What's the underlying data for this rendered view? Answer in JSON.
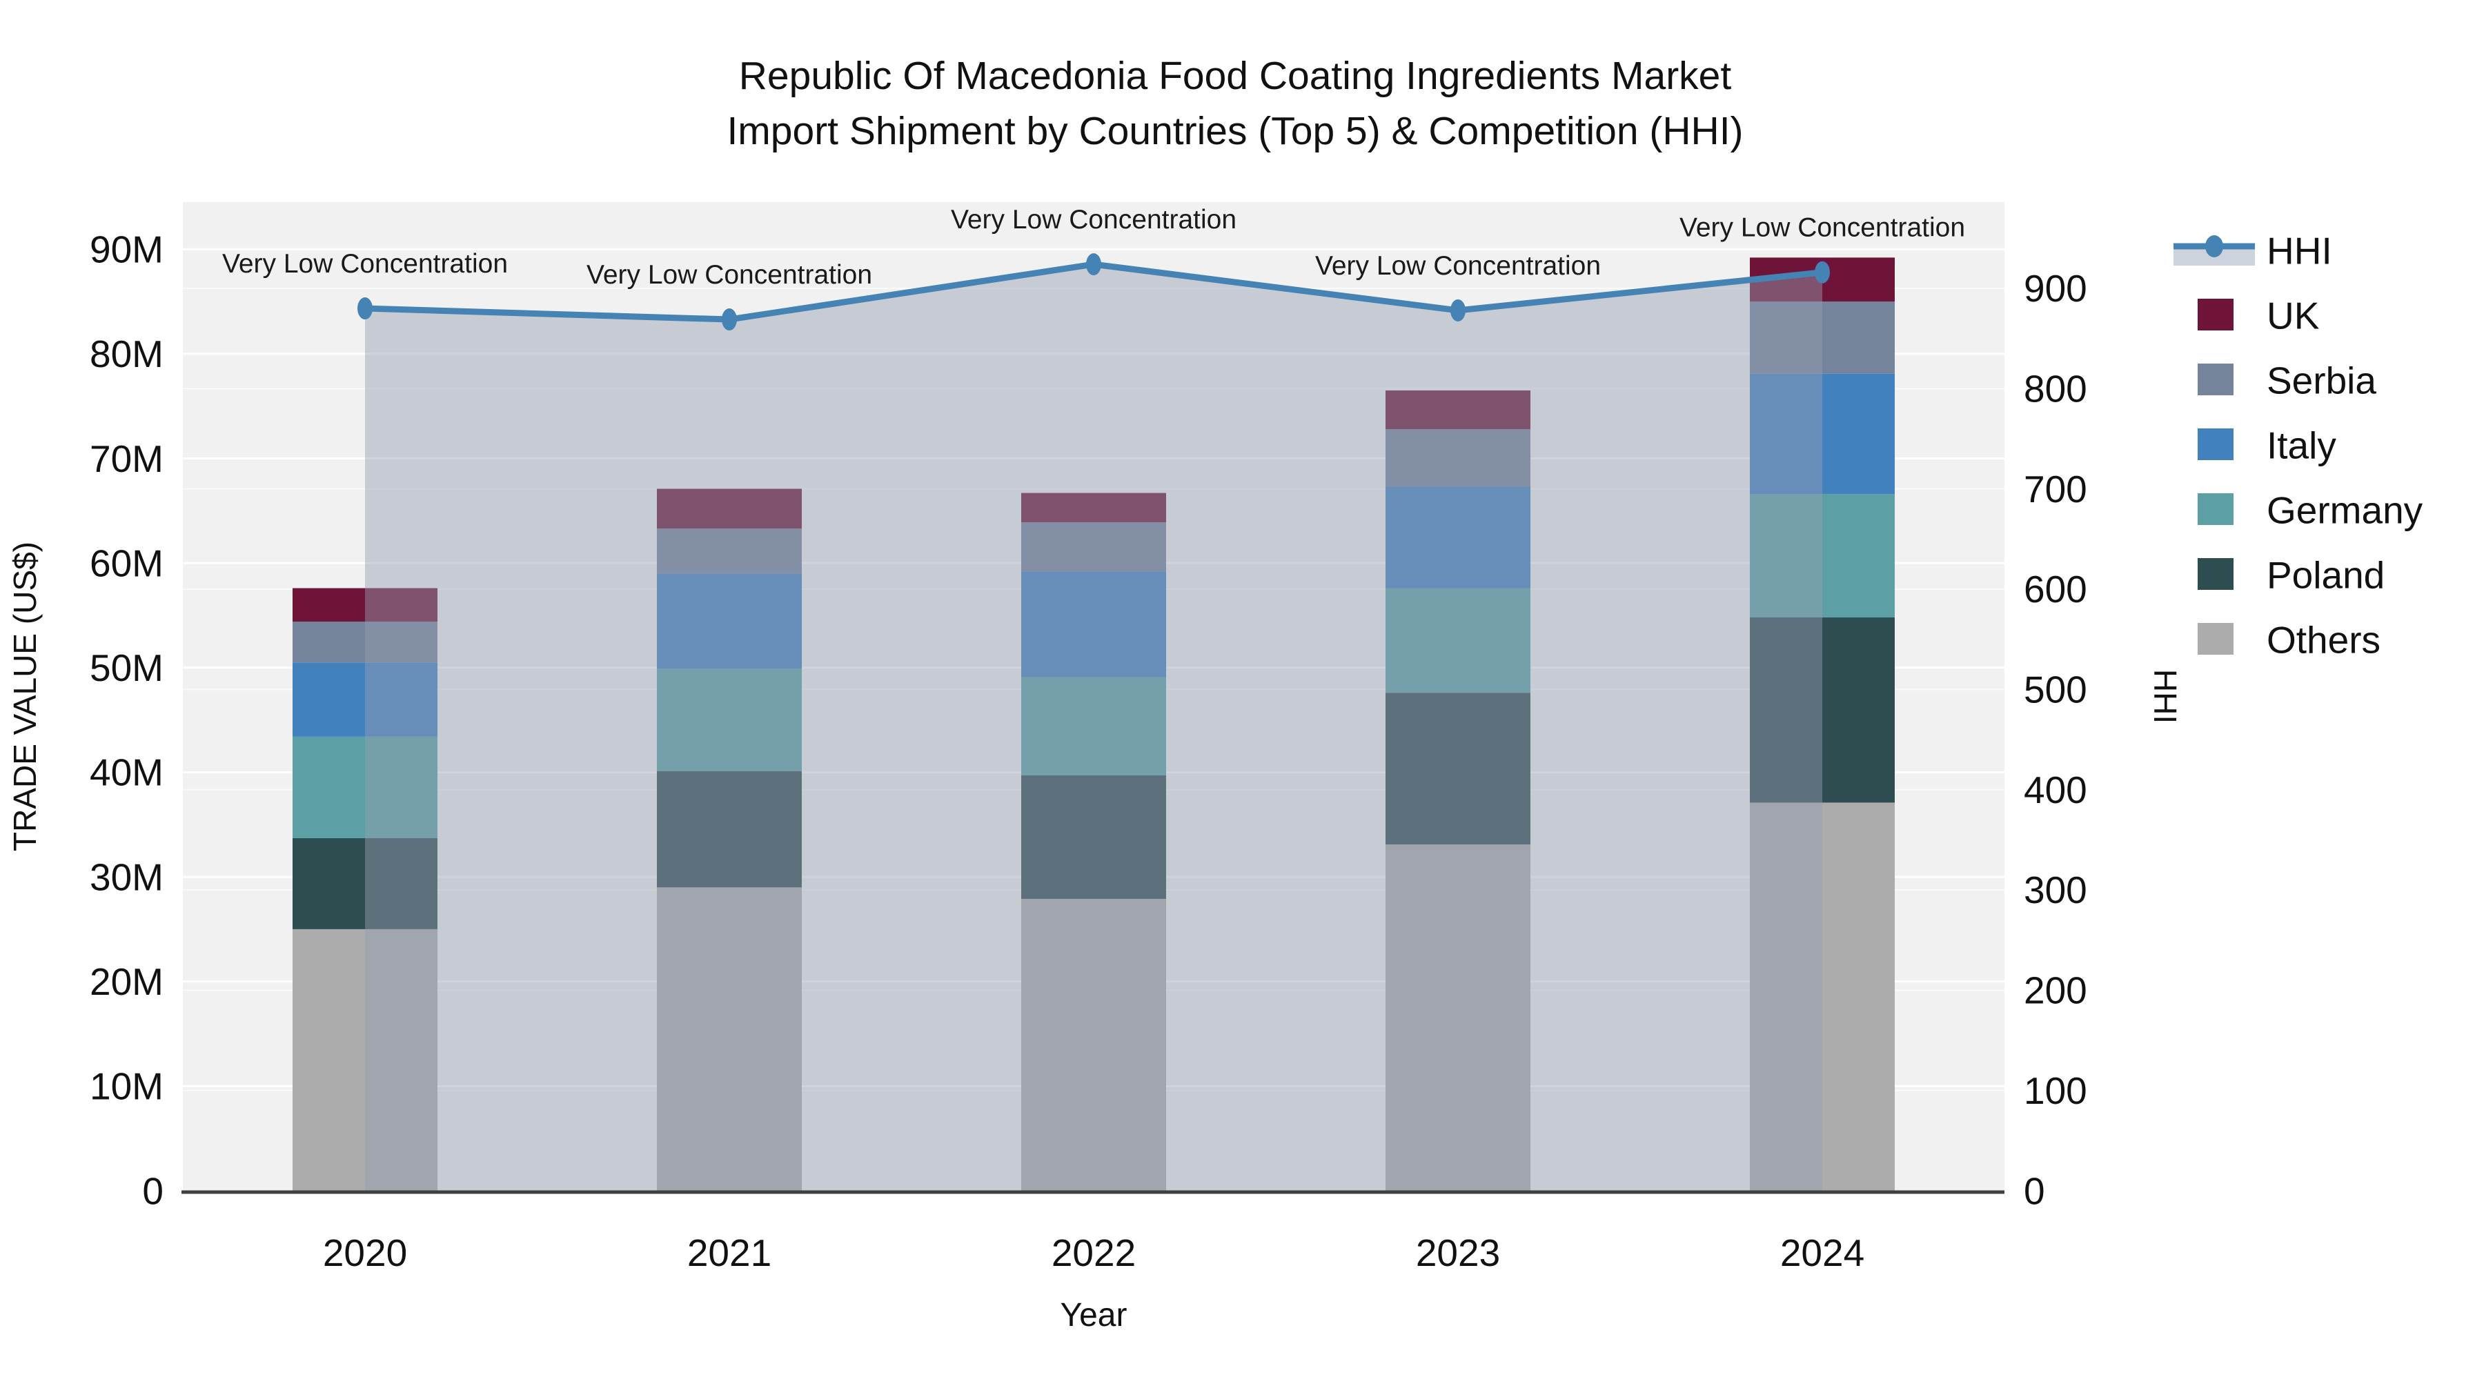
{
  "title": {
    "line1": "Republic Of Macedonia Food Coating Ingredients Market",
    "line2": "Import Shipment by Countries (Top 5) & Competition (HHI)"
  },
  "chart_data": {
    "type": "bar",
    "stacked": true,
    "categories": [
      "2020",
      "2021",
      "2022",
      "2023",
      "2024"
    ],
    "bar_value_unit": "million US$",
    "series": [
      {
        "name": "Others",
        "color": "#ACACAC",
        "values": [
          25.0,
          29.0,
          27.9,
          33.1,
          37.1
        ]
      },
      {
        "name": "Poland",
        "color": "#2E4D50",
        "values": [
          8.7,
          11.1,
          11.8,
          14.5,
          17.7
        ]
      },
      {
        "name": "Germany",
        "color": "#5CA0A5",
        "values": [
          9.7,
          9.8,
          9.4,
          10.0,
          11.8
        ]
      },
      {
        "name": "Italy",
        "color": "#4182BE",
        "values": [
          7.1,
          9.1,
          10.1,
          9.7,
          11.5
        ]
      },
      {
        "name": "Serbia",
        "color": "#75849A",
        "values": [
          3.9,
          4.3,
          4.7,
          5.5,
          6.9
        ]
      },
      {
        "name": "UK",
        "color": "#6D1438",
        "values": [
          3.2,
          3.8,
          2.8,
          3.7,
          4.2
        ]
      }
    ],
    "line_series": {
      "name": "HHI",
      "axis": "right",
      "color": "#4583B5",
      "area_fill": "rgba(148,158,178,0.45)",
      "values": [
        880,
        869,
        924,
        878,
        916
      ]
    },
    "annotations": [
      "Very Low Concentration",
      "Very Low Concentration",
      "Very Low Concentration",
      "Very Low Concentration",
      "Very Low Concentration"
    ],
    "xlabel": "Year",
    "ylabel_left": "TRADE VALUE (US$)",
    "ylabel_right": "HHI",
    "y_left": {
      "range": [
        0,
        94.5
      ],
      "ticks": [
        {
          "v": 0,
          "label": "0"
        },
        {
          "v": 10,
          "label": "10M"
        },
        {
          "v": 20,
          "label": "20M"
        },
        {
          "v": 30,
          "label": "30M"
        },
        {
          "v": 40,
          "label": "40M"
        },
        {
          "v": 50,
          "label": "50M"
        },
        {
          "v": 60,
          "label": "60M"
        },
        {
          "v": 70,
          "label": "70M"
        },
        {
          "v": 80,
          "label": "80M"
        },
        {
          "v": 90,
          "label": "90M"
        }
      ]
    },
    "y_right": {
      "range": [
        0,
        986
      ],
      "ticks": [
        {
          "v": 0,
          "label": "0"
        },
        {
          "v": 100,
          "label": "100"
        },
        {
          "v": 200,
          "label": "200"
        },
        {
          "v": 300,
          "label": "300"
        },
        {
          "v": 400,
          "label": "400"
        },
        {
          "v": 500,
          "label": "500"
        },
        {
          "v": 600,
          "label": "600"
        },
        {
          "v": 700,
          "label": "700"
        },
        {
          "v": 800,
          "label": "800"
        },
        {
          "v": 900,
          "label": "900"
        }
      ]
    },
    "legend_position": "right",
    "grid": true
  },
  "legend": {
    "items": [
      {
        "label": "HHI",
        "type": "line",
        "color": "#4583B5",
        "band_color": "#CDD3DC"
      },
      {
        "label": "UK",
        "type": "swatch",
        "color": "#6D1438"
      },
      {
        "label": "Serbia",
        "type": "swatch",
        "color": "#75849A"
      },
      {
        "label": "Italy",
        "type": "swatch",
        "color": "#4182BE"
      },
      {
        "label": "Germany",
        "type": "swatch",
        "color": "#5CA0A5"
      },
      {
        "label": "Poland",
        "type": "swatch",
        "color": "#2E4D50"
      },
      {
        "label": "Others",
        "type": "swatch",
        "color": "#ACACAC"
      }
    ]
  },
  "style": {
    "plot_bg": "#F1F1F1",
    "grid_color": "#FFFFFF",
    "axis_line_color": "#3F3F3F",
    "text_color": "#111111",
    "annotation_color": "#1A1A1A"
  }
}
